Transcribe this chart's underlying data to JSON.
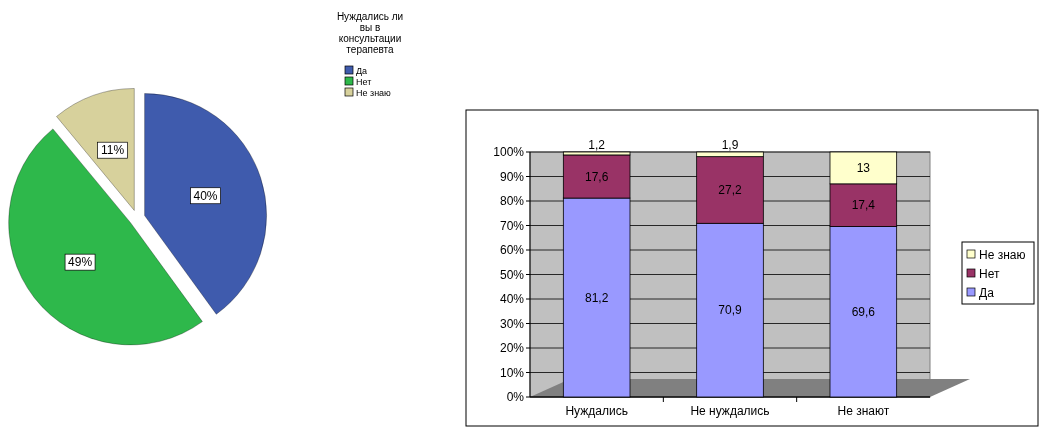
{
  "chart_data": [
    {
      "type": "pie",
      "title": "Нуждались ли вы в консультации терапевта",
      "categories": [
        "Да",
        "Нет",
        "Не знаю"
      ],
      "values": [
        40,
        49,
        11
      ],
      "colors": [
        "#3f5bad",
        "#2eb84b",
        "#d7d19c"
      ],
      "value_labels": [
        "40%",
        "49%",
        "11%"
      ],
      "legend": "top right"
    },
    {
      "type": "bar",
      "stacked": true,
      "categories": [
        "Нуждались",
        "Не нуждались",
        "Не знают"
      ],
      "series": [
        {
          "name": "Да",
          "color": "#9999ff",
          "values": [
            81.2,
            70.9,
            69.6
          ],
          "value_labels": [
            "81,2",
            "70,9",
            "69,6"
          ]
        },
        {
          "name": "Нет",
          "color": "#993366",
          "values": [
            17.6,
            27.2,
            17.4
          ],
          "value_labels": [
            "17,6",
            "27,2",
            "17,4"
          ]
        },
        {
          "name": "Не знаю",
          "color": "#ffffcc",
          "values": [
            1.2,
            1.9,
            13
          ],
          "value_labels": [
            "1,2",
            "1,9",
            "13"
          ]
        }
      ],
      "ylim": [
        0,
        100
      ],
      "yticks": [
        {
          "value": 0,
          "label": "0%"
        },
        {
          "value": 10,
          "label": "10%"
        },
        {
          "value": 20,
          "label": "20%"
        },
        {
          "value": 30,
          "label": "30%"
        },
        {
          "value": 40,
          "label": "40%"
        },
        {
          "value": 50,
          "label": "50%"
        },
        {
          "value": 60,
          "label": "60%"
        },
        {
          "value": 70,
          "label": "70%"
        },
        {
          "value": 80,
          "label": "80%"
        },
        {
          "value": 90,
          "label": "90%"
        },
        {
          "value": 100,
          "label": "100%"
        }
      ],
      "grid": "y",
      "legend": "right"
    }
  ]
}
